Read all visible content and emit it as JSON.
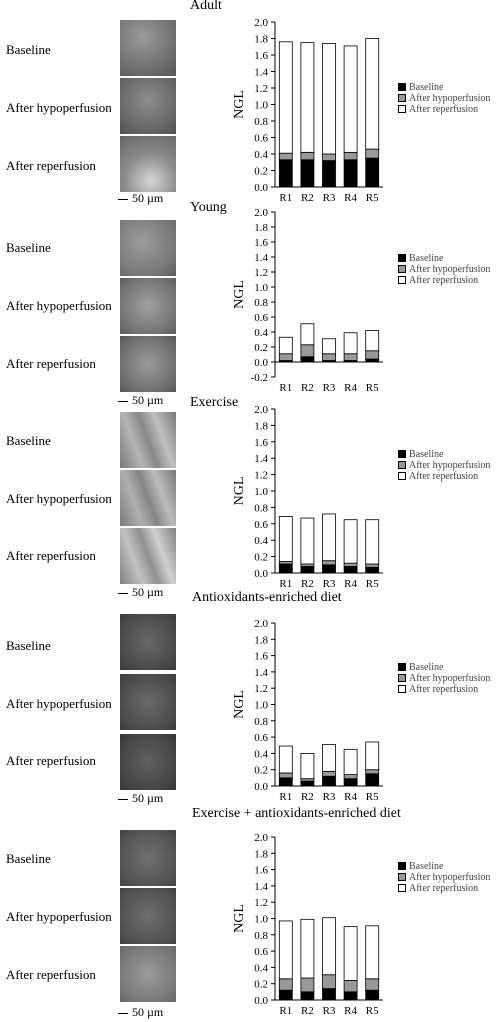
{
  "image_labels": {
    "baseline": "Baseline",
    "hypoperfusion": "After hypoperfusion",
    "reperfusion": "After reperfusion",
    "scale_bar": "50 µm"
  },
  "colors": {
    "baseline": "#000000",
    "hypoperfusion": "#999999",
    "reperfusion": "#ffffff"
  },
  "chart_data": [
    {
      "type": "bar",
      "stacked": true,
      "title": "Adult",
      "ylabel": "NGL",
      "ylim": [
        0,
        2.0
      ],
      "yticks": [
        "0.0",
        "0.2",
        "0.4",
        "0.6",
        "0.8",
        "1.0",
        "1.2",
        "1.4",
        "1.6",
        "1.8",
        "2.0"
      ],
      "categories": [
        "R1",
        "R2",
        "R3",
        "R4",
        "R5"
      ],
      "legend_position": "right",
      "series": [
        {
          "name": "Baseline",
          "values": [
            0.33,
            0.33,
            0.32,
            0.33,
            0.35
          ]
        },
        {
          "name": "After hypoperfusion",
          "values": [
            0.08,
            0.09,
            0.08,
            0.09,
            0.11
          ]
        },
        {
          "name": "After reperfusion",
          "values": [
            1.35,
            1.33,
            1.34,
            1.29,
            1.34
          ]
        }
      ]
    },
    {
      "type": "bar",
      "stacked": true,
      "title": "Young",
      "ylabel": "NGL",
      "ylim": [
        -0.2,
        2.0
      ],
      "yticks": [
        "-0.2",
        "0.0",
        "0.2",
        "0.4",
        "0.6",
        "0.8",
        "1.0",
        "1.2",
        "1.4",
        "1.6",
        "1.8",
        "2.0"
      ],
      "categories": [
        "R1",
        "R2",
        "R3",
        "R4",
        "R5"
      ],
      "legend_position": "right",
      "series": [
        {
          "name": "Baseline",
          "values": [
            0.02,
            0.07,
            0.02,
            0.02,
            0.04
          ]
        },
        {
          "name": "After hypoperfusion",
          "values": [
            0.09,
            0.16,
            0.09,
            0.09,
            0.11
          ]
        },
        {
          "name": "After reperfusion",
          "values": [
            0.22,
            0.28,
            0.2,
            0.28,
            0.27
          ]
        }
      ]
    },
    {
      "type": "bar",
      "stacked": true,
      "title": "Exercise",
      "ylabel": "NGL",
      "ylim": [
        0,
        2.0
      ],
      "yticks": [
        "0.0",
        "0.2",
        "0.4",
        "0.6",
        "0.8",
        "1.0",
        "1.2",
        "1.4",
        "1.6",
        "1.8",
        "2.0"
      ],
      "categories": [
        "R1",
        "R2",
        "R3",
        "R4",
        "R5"
      ],
      "legend_position": "right",
      "series": [
        {
          "name": "Baseline",
          "values": [
            0.11,
            0.08,
            0.1,
            0.08,
            0.07
          ]
        },
        {
          "name": "After hypoperfusion",
          "values": [
            0.03,
            0.03,
            0.05,
            0.04,
            0.04
          ]
        },
        {
          "name": "After reperfusion",
          "values": [
            0.55,
            0.56,
            0.57,
            0.53,
            0.54
          ]
        }
      ]
    },
    {
      "type": "bar",
      "stacked": true,
      "title": "Antioxidants-enriched diet",
      "ylabel": "NGL",
      "ylim": [
        0,
        2.0
      ],
      "yticks": [
        "0.0",
        "0.2",
        "0.4",
        "0.6",
        "0.8",
        "1.0",
        "1.2",
        "1.4",
        "1.6",
        "1.8",
        "2.0"
      ],
      "categories": [
        "R1",
        "R2",
        "R3",
        "R4",
        "R5"
      ],
      "legend_position": "right",
      "series": [
        {
          "name": "Baseline",
          "values": [
            0.1,
            0.06,
            0.12,
            0.09,
            0.15
          ]
        },
        {
          "name": "After hypoperfusion",
          "values": [
            0.06,
            0.03,
            0.06,
            0.05,
            0.05
          ]
        },
        {
          "name": "After reperfusion",
          "values": [
            0.33,
            0.31,
            0.33,
            0.31,
            0.34
          ]
        }
      ]
    },
    {
      "type": "bar",
      "stacked": true,
      "title": "Exercise + antioxidants-enriched diet",
      "ylabel": "NGL",
      "ylim": [
        0,
        2.0
      ],
      "yticks": [
        "0.0",
        "0.2",
        "0.4",
        "0.6",
        "0.8",
        "1.0",
        "1.2",
        "1.4",
        "1.6",
        "1.8",
        "2.0"
      ],
      "categories": [
        "R1",
        "R2",
        "R3",
        "R4",
        "R5"
      ],
      "legend_position": "right",
      "series": [
        {
          "name": "Baseline",
          "values": [
            0.12,
            0.1,
            0.14,
            0.1,
            0.12
          ]
        },
        {
          "name": "After hypoperfusion",
          "values": [
            0.14,
            0.17,
            0.17,
            0.14,
            0.14
          ]
        },
        {
          "name": "After reperfusion",
          "values": [
            0.71,
            0.72,
            0.7,
            0.66,
            0.65
          ]
        }
      ]
    }
  ]
}
